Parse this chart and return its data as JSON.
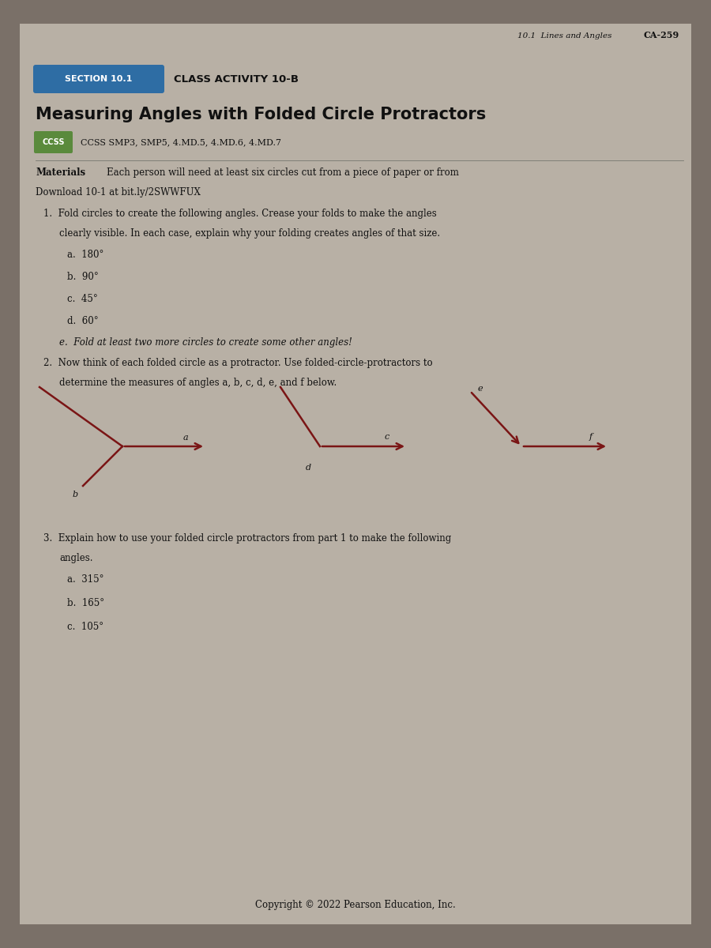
{
  "bg_color": "#7a7068",
  "paper_color": "#b8b0a5",
  "header_right_text": "10.1  Lines and Angles",
  "header_right_page": "CA-259",
  "section_box_color": "#2e6da4",
  "section_box_text": "SECTION 10.1",
  "section_box_text_color": "#ffffff",
  "class_activity_text": "CLASS ACTIVITY 10-B",
  "main_title": "Measuring Angles with Folded Circle Protractors",
  "ccss_box_color": "#5a8a3c",
  "ccss_box_text": "CCSS",
  "ccss_standards": "CCSS SMP3, SMP5, 4.MD.5, 4.MD.6, 4.MD.7",
  "footer_text": "Copyright © 2022 Pearson Education, Inc.",
  "arrow_color": "#7a1515",
  "text_color": "#111111"
}
